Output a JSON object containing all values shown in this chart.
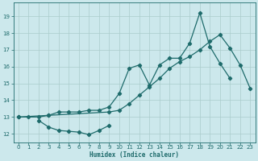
{
  "xlabel": "Humidex (Indice chaleur)",
  "bg_color": "#cce8ec",
  "line_color": "#1e6b6b",
  "grid_color": "#aacccc",
  "xlim": [
    -0.5,
    23.5
  ],
  "ylim": [
    11.5,
    19.8
  ],
  "yticks": [
    12,
    13,
    14,
    15,
    16,
    17,
    18,
    19
  ],
  "xticks": [
    0,
    1,
    2,
    3,
    4,
    5,
    6,
    7,
    8,
    9,
    10,
    11,
    12,
    13,
    14,
    15,
    16,
    17,
    18,
    19,
    20,
    21,
    22,
    23
  ],
  "line1_x": [
    0,
    1,
    2,
    3,
    4,
    5,
    6,
    7,
    8,
    9,
    10,
    11,
    12,
    13,
    14,
    15,
    16,
    17,
    18,
    19,
    20,
    21
  ],
  "line1_y": [
    13.0,
    13.0,
    13.0,
    13.1,
    13.3,
    13.3,
    13.3,
    13.4,
    13.4,
    13.6,
    14.4,
    15.9,
    16.1,
    14.9,
    16.1,
    16.5,
    16.5,
    17.4,
    19.2,
    17.2,
    16.2,
    15.3
  ],
  "line2_x": [
    0,
    3,
    9,
    10,
    11,
    12,
    13,
    14,
    15,
    16,
    17,
    18,
    19,
    20,
    21,
    22,
    23
  ],
  "line2_y": [
    13.0,
    13.1,
    13.3,
    13.4,
    13.8,
    14.3,
    14.8,
    15.3,
    15.9,
    16.3,
    16.6,
    17.0,
    17.5,
    17.9,
    17.1,
    16.1,
    14.7
  ],
  "line3_x": [
    2,
    3,
    4,
    5,
    6,
    7,
    8,
    9
  ],
  "line3_y": [
    12.8,
    12.4,
    12.2,
    12.15,
    12.1,
    11.95,
    12.2,
    12.5
  ]
}
